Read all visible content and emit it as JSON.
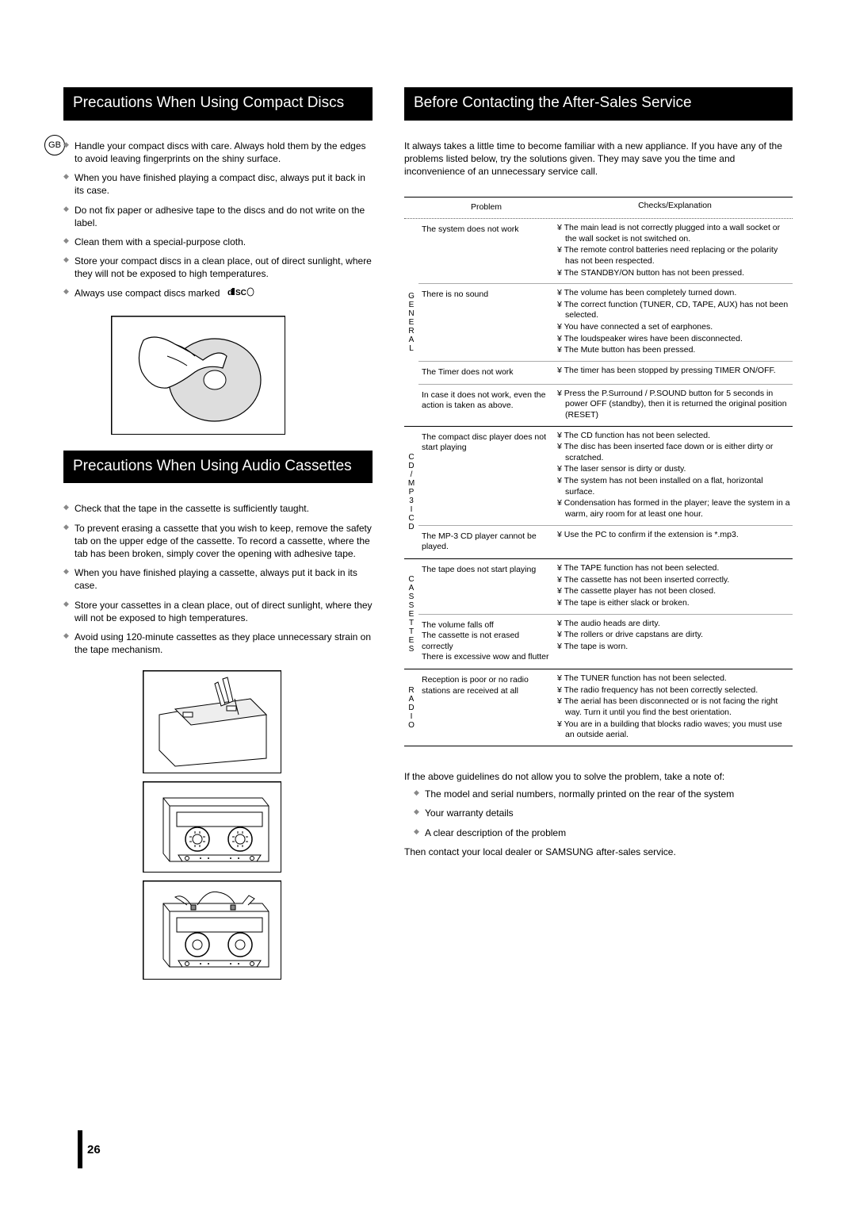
{
  "gb_label": "GB",
  "page_number": "26",
  "left": {
    "discs": {
      "title": "Precautions When Using Compact Discs",
      "items": [
        "Handle your compact discs with care. Always hold them by the edges to avoid leaving fingerprints on the shiny surface.",
        "When you have finished playing a compact disc, always put it back in its case.",
        "Do not fix paper or adhesive tape to the discs and do not write on the label.",
        "Clean them with a special-purpose cloth.",
        "Store your compact discs in a clean place, out of direct sunlight, where they will not be exposed to high temperatures.",
        "Always use compact discs marked"
      ]
    },
    "cassettes": {
      "title": "Precautions When Using Audio Cassettes",
      "items": [
        "Check that the tape in the cassette is sufficiently taught.",
        "To prevent erasing a cassette that you wish to keep, remove the safety tab on the upper edge of the cassette. To record a cassette, where the tab has been broken, simply cover the opening with adhesive tape.",
        "When you have finished playing a cassette, always put it back in its case.",
        "Store your cassettes in a clean place, out of direct sunlight, where they will not be exposed to high temperatures.",
        "Avoid using 120-minute cassettes as they place unnecessary strain on the tape mechanism."
      ]
    }
  },
  "right": {
    "title": "Before Contacting the After-Sales Service",
    "intro": "It always takes a little time to become familiar with a new appliance. If you have any of the problems listed below, try the solutions given. They may save you the time and inconvenience of an unnecessary service call.",
    "headers": {
      "problem": "Problem",
      "checks": "Checks/Explanation"
    },
    "groups": [
      {
        "cat": "GENERAL",
        "rows": [
          {
            "problem": "The system does not work",
            "checks": [
              "¥ The main lead is not correctly plugged into a wall socket or the wall socket is not switched on.",
              "¥ The remote control batteries need replacing or the polarity has not been respected.",
              "¥ The STANDBY/ON button has not been pressed."
            ]
          },
          {
            "problem": "There is no sound",
            "checks": [
              "¥ The volume has been completely turned down.",
              "¥ The correct function (TUNER, CD, TAPE, AUX) has not been selected.",
              "¥ You have connected a set of earphones.",
              "¥ The loudspeaker wires have been disconnected.",
              "¥ The Mute button has been pressed."
            ]
          },
          {
            "problem": "The Timer does not work",
            "checks": [
              "¥ The timer has been stopped by pressing TIMER ON/OFF."
            ]
          },
          {
            "problem": "In case it does not work, even the action is taken as above.",
            "checks": [
              "¥ Press the P.Surround / P.SOUND button for 5 seconds in power OFF (standby), then it is returned the original position (RESET)"
            ]
          }
        ]
      },
      {
        "cat": "CD/MP3ICD",
        "rows": [
          {
            "problem": "The compact disc player does not start playing",
            "checks": [
              "¥ The CD function has not been selected.",
              "¥ The disc has been inserted face down or is either dirty or scratched.",
              "¥ The laser sensor is dirty or dusty.",
              "¥ The system has not been installed on a flat, horizontal surface.",
              "¥ Condensation has formed in the player; leave the system in a warm, airy room for at least one hour."
            ]
          },
          {
            "problem": "The MP-3 CD player cannot be played.",
            "checks": [
              "¥ Use the PC to confirm if the extension is *.mp3."
            ]
          }
        ]
      },
      {
        "cat": "CASSETTES",
        "rows": [
          {
            "problem": "The tape does not start playing",
            "checks": [
              "¥ The TAPE function has not been selected.",
              "¥ The cassette has not been inserted correctly.",
              "¥ The cassette player has not been closed.",
              "¥ The tape is either slack or broken."
            ]
          },
          {
            "problem": "The volume falls off\nThe cassette is not erased correctly\nThere is excessive wow and flutter",
            "checks": [
              "¥ The audio heads are dirty.",
              "¥ The rollers or drive capstans are dirty.",
              "¥ The tape is worn."
            ]
          }
        ]
      },
      {
        "cat": "RADIO",
        "rows": [
          {
            "problem": "Reception is poor or no radio stations are received at all",
            "checks": [
              "¥ The TUNER function has not been selected.",
              "¥ The radio frequency has not been correctly selected.",
              "¥ The aerial has been disconnected or is not facing the right way. Turn it until you find the best orientation.",
              "¥ You are in a building that blocks radio waves; you must use an outside aerial."
            ]
          }
        ]
      }
    ],
    "closing_intro": "If the above guidelines do not allow you to solve the problem, take a note of:",
    "closing_items": [
      "The model and serial numbers, normally printed on the rear of the system",
      "Your warranty details",
      "A clear description of the problem"
    ],
    "closing_out": "Then contact your local dealer or SAMSUNG after-sales service."
  }
}
